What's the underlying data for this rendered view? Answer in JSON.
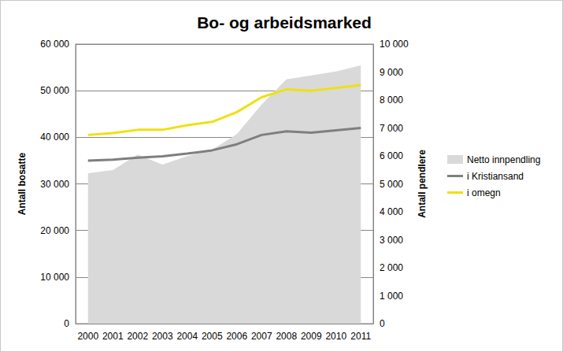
{
  "chart_data": {
    "type": "line",
    "title": "Bo- og arbeidsmarked",
    "y_label": "Antall bosatte",
    "y2_label": "Antall pendlere",
    "categories": [
      "2000",
      "2001",
      "2002",
      "2003",
      "2004",
      "2005",
      "2006",
      "2007",
      "2008",
      "2009",
      "2010",
      "2011"
    ],
    "series": [
      {
        "name": "Netto innpendling",
        "type": "area",
        "axis": "y2",
        "color": "#d9d9d9",
        "values": [
          5380,
          5490,
          6050,
          5690,
          5990,
          6220,
          6780,
          7840,
          8740,
          8880,
          9020,
          9240
        ]
      },
      {
        "name": "i Kristiansand",
        "type": "line",
        "color": "#7f7f7f",
        "values": [
          35000,
          35200,
          35600,
          35900,
          36500,
          37200,
          38500,
          40500,
          41300,
          41000,
          41500,
          42000
        ]
      },
      {
        "name": "i omegn",
        "type": "line",
        "color": "#f0e010",
        "values": [
          40500,
          40900,
          41600,
          41600,
          42600,
          43300,
          45400,
          48600,
          50300,
          50000,
          50600,
          51200
        ]
      }
    ],
    "ylim": [
      0,
      60000
    ],
    "yticks": [
      0,
      {
        "value": 10000,
        "label": "10 000"
      },
      {
        "value": 20000,
        "label": "20 000"
      },
      {
        "value": 30000,
        "label": "30 000"
      },
      {
        "value": 40000,
        "label": "40 000"
      },
      {
        "value": 50000,
        "label": "50 000"
      },
      {
        "value": 60000,
        "label": "60 000"
      }
    ],
    "y2lim": [
      0,
      10000
    ],
    "y2ticks": [
      0,
      {
        "value": 1000,
        "label": "1 000"
      },
      {
        "value": 2000,
        "label": "2 000"
      },
      {
        "value": 3000,
        "label": "3 000"
      },
      {
        "value": 4000,
        "label": "4 000"
      },
      {
        "value": 5000,
        "label": "5 000"
      },
      {
        "value": 6000,
        "label": "6 000"
      },
      {
        "value": 7000,
        "label": "7 000"
      },
      {
        "value": 8000,
        "label": "8 000"
      },
      {
        "value": 9000,
        "label": "9 000"
      },
      {
        "value": 10000,
        "label": "10 000"
      }
    ],
    "grid": true,
    "legend": "right",
    "marker": "none"
  }
}
